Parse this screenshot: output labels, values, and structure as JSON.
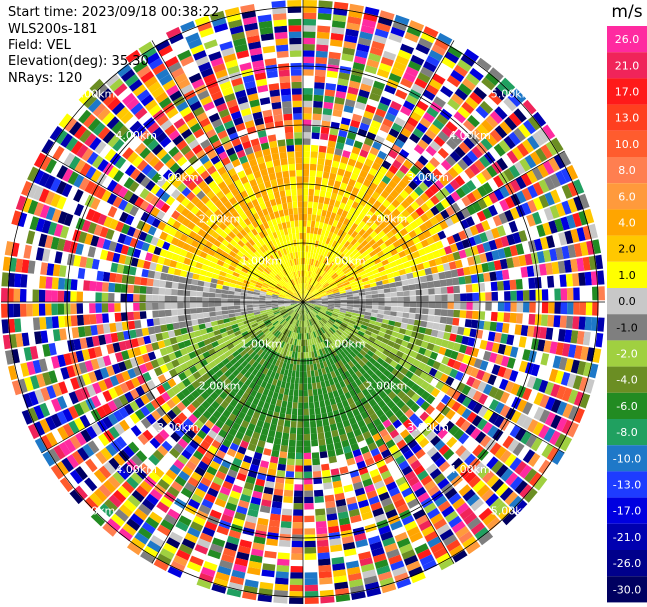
{
  "info": {
    "start_time": "Start time: 2023/09/18 00:38:22",
    "instrument": "WLS200s-181",
    "field": "Field: VEL",
    "elevation": "Elevation(deg): 35.30",
    "nrays": "NRays: 120"
  },
  "colorbar": {
    "unit": "m/s",
    "labels": [
      "26.0",
      "21.0",
      "17.0",
      "13.0",
      "10.0",
      "8.0",
      "6.0",
      "4.0",
      "2.0",
      "1.0",
      "0.0",
      "-1.0",
      "-2.0",
      "-4.0",
      "-6.0",
      "-8.0",
      "-10.0",
      "-13.0",
      "-17.0",
      "-21.0",
      "-26.0",
      "-30.0"
    ],
    "colors": [
      "#ff2aa0",
      "#f0245a",
      "#ff1a1a",
      "#ff3f1f",
      "#ff5c2e",
      "#ff7f50",
      "#ff9a3c",
      "#ffa500",
      "#ffc800",
      "#ffff00",
      "#c8c8c8",
      "#7f7f7f",
      "#a0d040",
      "#6b8e23",
      "#228b22",
      "#20a060",
      "#1e78c8",
      "#1e3cff",
      "#0000e0",
      "#0000b0",
      "#00008b",
      "#000060"
    ]
  },
  "chart_data": {
    "type": "heatmap",
    "subtype": "polar PPI scan",
    "field": "VEL",
    "units": "m/s",
    "range_rings_km": [
      1.0,
      2.0,
      3.0,
      4.0,
      5.0
    ],
    "ring_labels": [
      "1.00km",
      "2.00km",
      "3.00km",
      "4.00km",
      "5.00km"
    ],
    "rays": 120,
    "elevation_deg": 35.3,
    "pattern": "upper half positive (yellow/orange) velocities, lower half negative (green) velocities, near-zero gray band along horizontal; noisy multicolor beyond ~2.5 km"
  }
}
